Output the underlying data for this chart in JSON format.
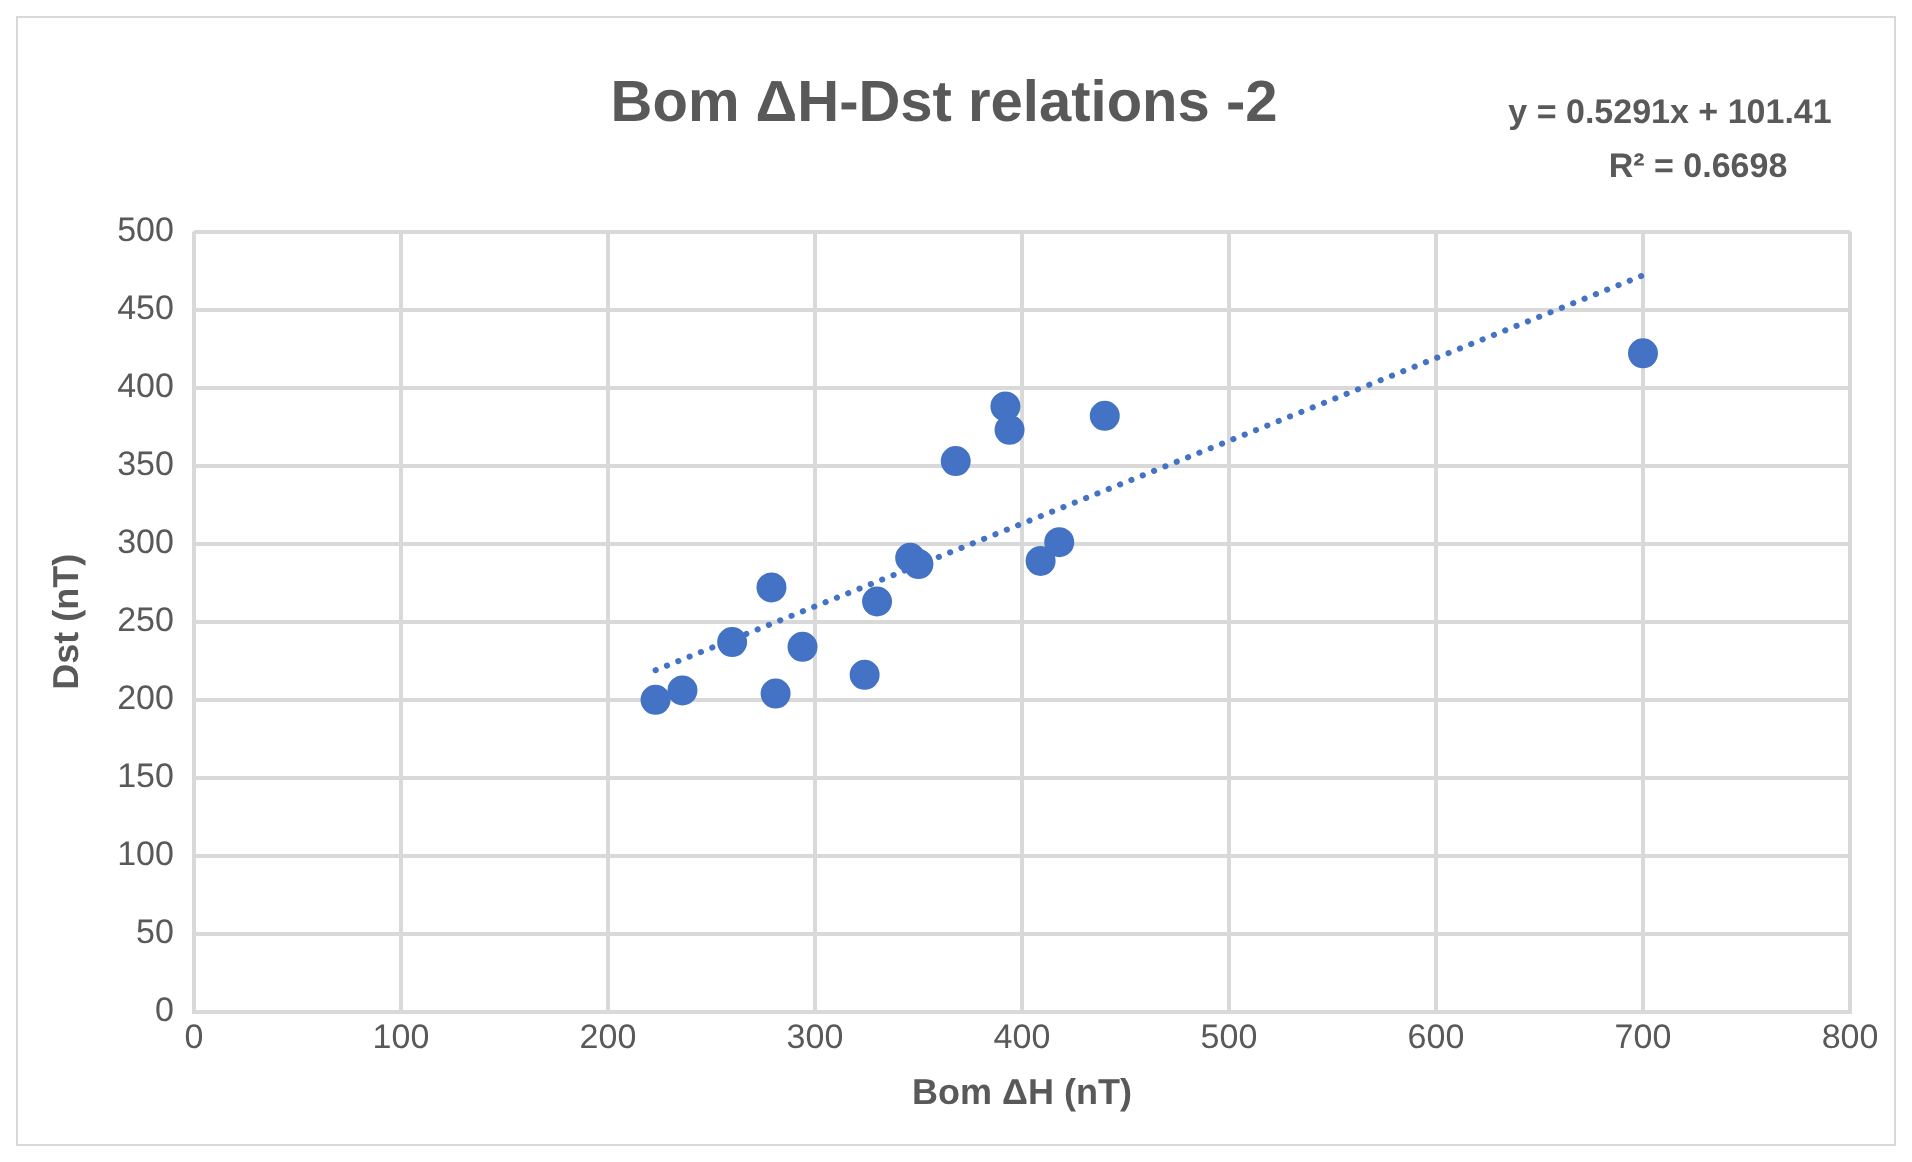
{
  "chart_data": {
    "type": "scatter",
    "title": "Bom ΔH-Dst relations -2",
    "xlabel": "Bom ΔH (nT)",
    "ylabel": "Dst (nT)",
    "annotations": [
      "y = 0.5291x + 101.41",
      "R² = 0.6698"
    ],
    "series": [
      {
        "type": "scatter",
        "color": "#4472c4",
        "marker": "circle",
        "x": [
          223,
          236,
          260,
          279,
          281,
          294,
          324,
          330,
          346,
          350,
          368,
          392,
          394,
          409,
          418,
          440,
          700
        ],
        "values": [
          200,
          206,
          237,
          272,
          204,
          234,
          216,
          263,
          291,
          287,
          353,
          388,
          373,
          289,
          301,
          382,
          422
        ]
      },
      {
        "type": "line",
        "color": "#4472c4",
        "line_style": "dotted",
        "marker": "none",
        "x": [
          223,
          700
        ],
        "values": [
          219,
          472
        ]
      }
    ],
    "xlim": [
      0,
      800
    ],
    "xticks": [
      0,
      100,
      200,
      300,
      400,
      500,
      600,
      700,
      800
    ],
    "ylim": [
      0,
      500
    ],
    "yticks": [
      0,
      50,
      100,
      150,
      200,
      250,
      300,
      350,
      400,
      450,
      500
    ],
    "grid": true,
    "legend": false
  }
}
